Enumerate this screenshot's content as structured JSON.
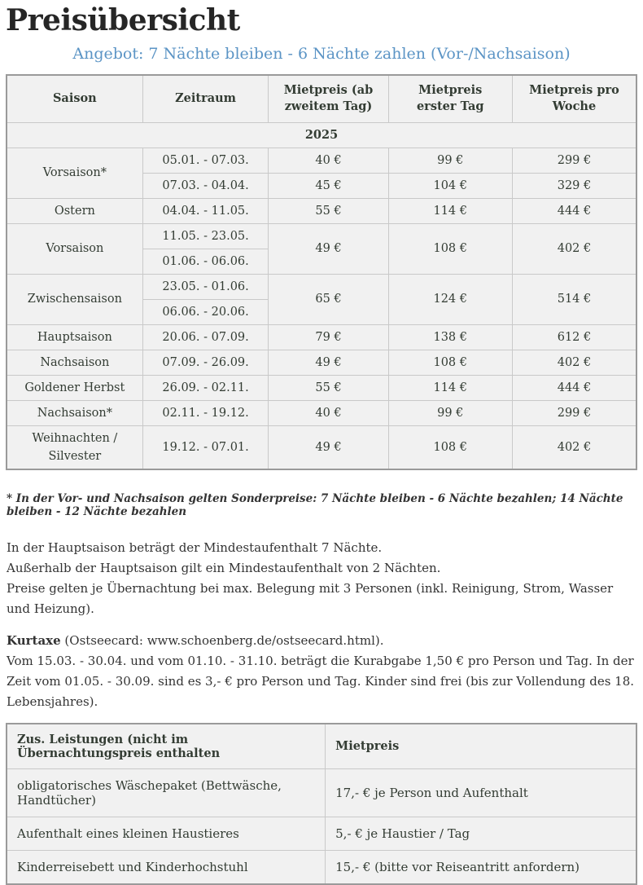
{
  "page": {
    "title": "Preisübersicht",
    "subtitle": "Angebot: 7 Nächte bleiben - 6 Nächte zahlen (Vor-/Nachsaison)"
  },
  "colors": {
    "subtitle_blue": "#5b94c5",
    "table_text": "#333c33",
    "cell_bg": "#f1f1f1",
    "border_inner": "#c9c9c9",
    "border_outer": "#9a9a9a",
    "body_text": "#333333",
    "title_text": "#262626"
  },
  "price_table": {
    "columns": [
      "Saison",
      "Zeitraum",
      "Mietpreis (ab zweitem Tag)",
      "Mietpreis erster Tag",
      "Mietpreis pro Woche"
    ],
    "year": "2025",
    "rows": [
      [
        {
          "text": "Vorsaison*",
          "rowspan": 2
        },
        {
          "text": "05.01. - 07.03."
        },
        {
          "text": "40 €"
        },
        {
          "text": "99 €"
        },
        {
          "text": "299 €"
        }
      ],
      [
        {
          "text": "07.03. - 04.04."
        },
        {
          "text": "45 €"
        },
        {
          "text": "104 €"
        },
        {
          "text": "329 €"
        }
      ],
      [
        {
          "text": "Ostern"
        },
        {
          "text": "04.04. - 11.05."
        },
        {
          "text": "55 €"
        },
        {
          "text": "114 €"
        },
        {
          "text": "444 €"
        }
      ],
      [
        {
          "text": "Vorsaison",
          "rowspan": 2
        },
        {
          "text": "11.05. - 23.05."
        },
        {
          "text": "49 €",
          "rowspan": 2
        },
        {
          "text": "108 €",
          "rowspan": 2
        },
        {
          "text": "402 €",
          "rowspan": 2
        }
      ],
      [
        {
          "text": "01.06. - 06.06."
        }
      ],
      [
        {
          "text": "Zwischensaison",
          "rowspan": 2
        },
        {
          "text": "23.05. - 01.06."
        },
        {
          "text": "65 €",
          "rowspan": 2
        },
        {
          "text": "124 €",
          "rowspan": 2
        },
        {
          "text": "514 €",
          "rowspan": 2
        }
      ],
      [
        {
          "text": "06.06. - 20.06."
        }
      ],
      [
        {
          "text": "Hauptsaison"
        },
        {
          "text": "20.06. - 07.09."
        },
        {
          "text": "79 €"
        },
        {
          "text": "138 €"
        },
        {
          "text": "612 €"
        }
      ],
      [
        {
          "text": "Nachsaison"
        },
        {
          "text": "07.09. - 26.09."
        },
        {
          "text": "49 €"
        },
        {
          "text": "108 €"
        },
        {
          "text": "402 €"
        }
      ],
      [
        {
          "text": "Goldener Herbst"
        },
        {
          "text": "26.09. - 02.11."
        },
        {
          "text": "55 €"
        },
        {
          "text": "114 €"
        },
        {
          "text": "444 €"
        }
      ],
      [
        {
          "text": "Nachsaison*"
        },
        {
          "text": "02.11. - 19.12."
        },
        {
          "text": "40 €"
        },
        {
          "text": "99 €"
        },
        {
          "text": "299 €"
        }
      ],
      [
        {
          "text": "Weihnachten / Silvester"
        },
        {
          "text": "19.12. - 07.01."
        },
        {
          "text": "49 €"
        },
        {
          "text": "108 €"
        },
        {
          "text": "402 €"
        }
      ]
    ]
  },
  "footnote": "* In der Vor- und Nachsaison gelten Sonderpreise: 7 Nächte bleiben - 6 Nächte bezahlen; 14 Nächte bleiben - 12 Nächte bezahlen",
  "notes": {
    "lines": [
      "In der Hauptsaison beträgt der Mindestaufenthalt 7 Nächte.",
      "Außerhalb der Hauptsaison gilt ein Mindestaufenthalt von 2 Nächten.",
      "Preise gelten je Übernachtung bei max. Belegung mit 3 Personen (inkl. Reinigung, Strom, Wasser und Heizung)."
    ]
  },
  "kurtaxe": {
    "label": "Kurtaxe",
    "suffix": " (Ostseecard: www.schoenberg.de/ostseecard.html).",
    "body": "Vom 15.03. - 30.04. und vom 01.10. - 31.10. beträgt die Kurabgabe 1,50 € pro Person und Tag. In der Zeit vom 01.05. - 30.09. sind es 3,- € pro Person und Tag. Kinder sind frei (bis zur Vollendung des 18. Lebensjahres)."
  },
  "extras_table": {
    "columns": [
      "Zus. Leistungen (nicht im Übernachtungspreis enthalten",
      "Mietpreis"
    ],
    "rows": [
      [
        "obligatorisches Wäschepaket (Bettwäsche, Handtücher)",
        "17,- € je Person und Aufenthalt"
      ],
      [
        "Aufenthalt eines kleinen Haustieres",
        "5,- € je Haustier / Tag"
      ],
      [
        "Kinderreisebett und Kinderhochstuhl",
        "15,- € (bitte vor Reiseantritt anfordern)"
      ]
    ]
  }
}
